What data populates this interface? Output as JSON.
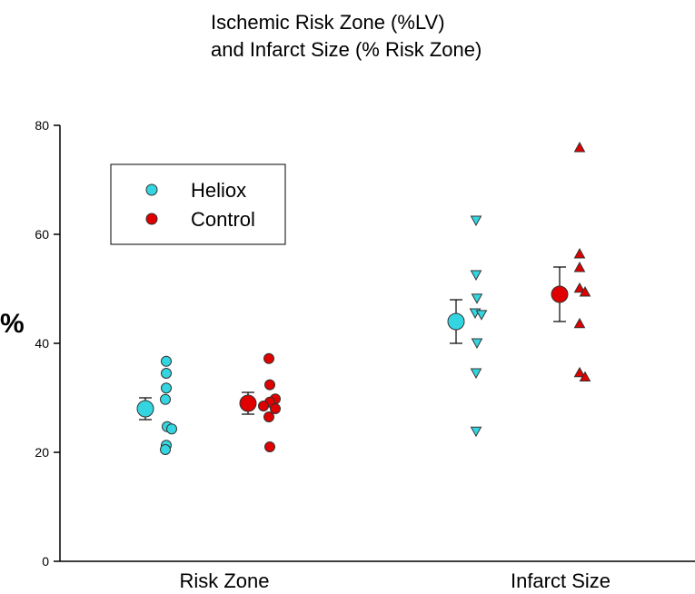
{
  "chart_data": {
    "type": "scatter",
    "title_lines": [
      "Ischemic Risk Zone (%LV)",
      "and Infarct Size (% Risk Zone)"
    ],
    "ylabel": "%",
    "ylim": [
      0,
      80
    ],
    "yticks": [
      0,
      20,
      40,
      60,
      80
    ],
    "categories": [
      "Risk Zone",
      "Infarct Size"
    ],
    "legend": {
      "placement": "upper-left",
      "entries": [
        {
          "name": "Heliox",
          "color": "#33d6e0"
        },
        {
          "name": "Control",
          "color": "#e00000"
        }
      ]
    },
    "groups": [
      {
        "category": "Risk Zone",
        "series": "Heliox",
        "marker": "circle",
        "mean": 28,
        "error": 2,
        "values": [
          36.7,
          34.5,
          31.8,
          29.7,
          24.7,
          24.3,
          21.3,
          20.5
        ]
      },
      {
        "category": "Risk Zone",
        "series": "Control",
        "marker": "circle",
        "mean": 29,
        "error": 2,
        "values": [
          37.2,
          32.4,
          29.8,
          29.2,
          28.5,
          28.0,
          26.5,
          21.0
        ]
      },
      {
        "category": "Infarct Size",
        "series": "Heliox",
        "marker": "triangle-down",
        "mean": 44,
        "error": 4,
        "values": [
          62.5,
          52.5,
          48.2,
          45.5,
          45.2,
          40.0,
          34.5,
          23.8
        ]
      },
      {
        "category": "Infarct Size",
        "series": "Control",
        "marker": "triangle-up",
        "mean": 49,
        "error": 5,
        "values": [
          76.0,
          56.5,
          54.0,
          50.2,
          49.5,
          43.7,
          34.7,
          33.9
        ]
      }
    ]
  },
  "colors": {
    "heliox": "#33d6e0",
    "control": "#e00000",
    "axis": "#000000"
  }
}
